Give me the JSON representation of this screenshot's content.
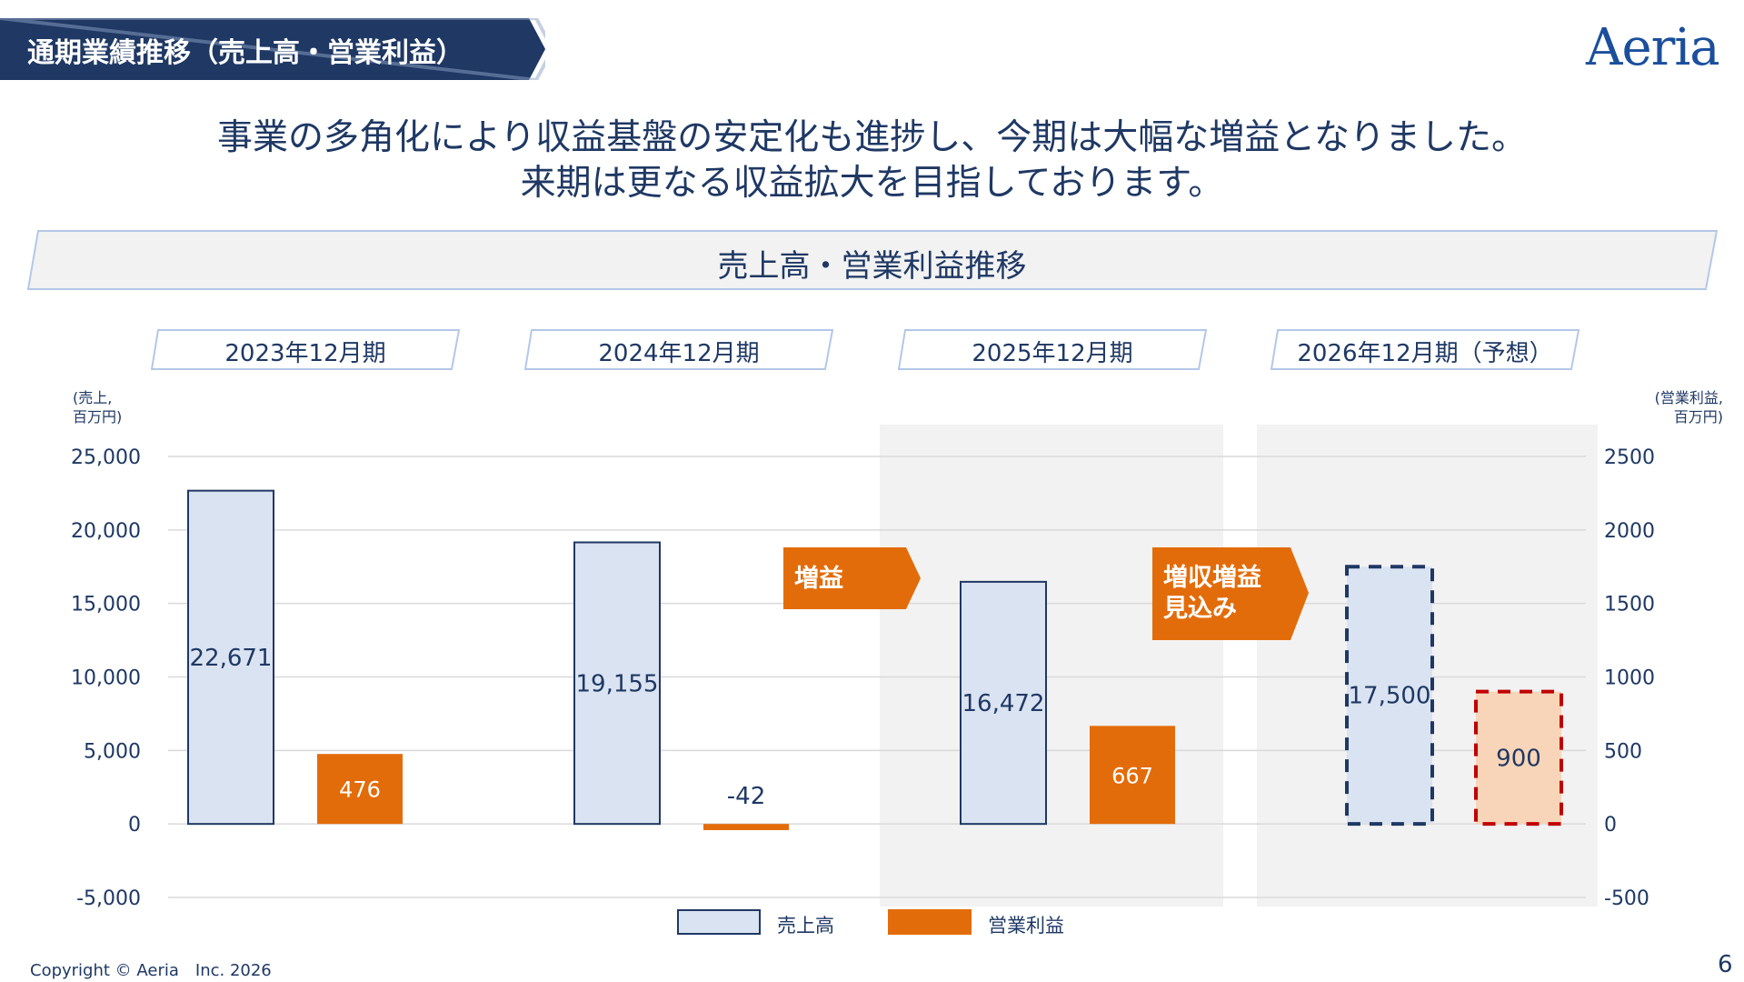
{
  "header": {
    "section_title": "通期業績推移（売上高・営業利益）",
    "logo_text": "Aeria"
  },
  "headline": {
    "line1": "事業の多角化により収益基盤の安定化も進捗し、今期は大幅な増益となりました。",
    "line2": "来期は更なる収益拡大を目指しております。"
  },
  "band_title": "売上高・営業利益推移",
  "periods": [
    "2023年12月期",
    "2024年12月期",
    "2025年12月期",
    "2026年12月期（予想）"
  ],
  "units": {
    "left": [
      "(売上,",
      "百万円)"
    ],
    "right": [
      "(営業利益,",
      "百万円)"
    ]
  },
  "callouts": {
    "first": [
      "増益"
    ],
    "second": [
      "増収増益",
      "見込み"
    ]
  },
  "legend": {
    "sales": "売上高",
    "profit": "営業利益"
  },
  "footer": {
    "copyright": "Copyright © Aeria　Inc. 2026",
    "page": "6"
  },
  "colors": {
    "navy": "#1f3864",
    "sales_fill": "#dae3f1",
    "profit_orange": "#e36c0a",
    "forecast_profit_fill": "#f8d5b8",
    "forecast_profit_border": "#c00000",
    "forecast_sales_border": "#1f3864",
    "highlight_bg": "#f2f2f2"
  },
  "chart_data": {
    "type": "bar",
    "categories": [
      "2023年12月期",
      "2024年12月期",
      "2025年12月期",
      "2026年12月期（予想）"
    ],
    "series": [
      {
        "name": "売上高",
        "axis": "left",
        "values": [
          22671,
          19155,
          16472,
          17500
        ],
        "labels": [
          "22,671",
          "19,155",
          "16,472",
          "17,500"
        ],
        "forecast": [
          false,
          false,
          false,
          true
        ]
      },
      {
        "name": "営業利益",
        "axis": "right",
        "values": [
          476,
          -42,
          667,
          900
        ],
        "labels": [
          "476",
          "-42",
          "667",
          "900"
        ],
        "forecast": [
          false,
          false,
          false,
          true
        ]
      }
    ],
    "left_axis": {
      "ylim": [
        -5000,
        25000
      ],
      "ticks": [
        25000,
        20000,
        15000,
        10000,
        5000,
        0,
        -5000
      ],
      "tick_labels": [
        "25,000",
        "20,000",
        "15,000",
        "10,000",
        "5,000",
        "0",
        "-5,000"
      ]
    },
    "right_axis": {
      "ylim": [
        -500,
        2500
      ],
      "ticks": [
        2500,
        2000,
        1500,
        1000,
        500,
        0,
        -500
      ],
      "tick_labels": [
        "2500",
        "2000",
        "1500",
        "1000",
        "500",
        "0",
        "-500"
      ]
    },
    "grid": true,
    "highlighted_categories": [
      "2025年12月期",
      "2026年12月期（予想）"
    ],
    "legend": {
      "position": "bottom-center",
      "entries": [
        "売上高",
        "営業利益"
      ]
    }
  }
}
